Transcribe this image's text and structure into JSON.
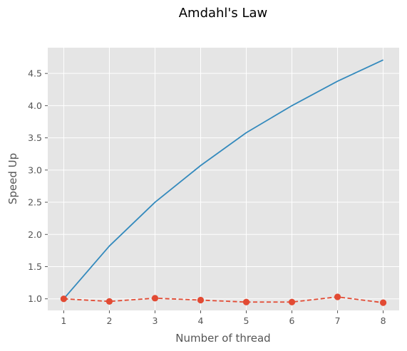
{
  "chart_data": {
    "type": "line",
    "title": "Amdahl's Law",
    "xlabel": "Number of thread",
    "ylabel": "Speed Up",
    "x": [
      1,
      2,
      3,
      4,
      5,
      6,
      7,
      8
    ],
    "xlim": [
      0.65,
      8.35
    ],
    "ylim": [
      0.82,
      4.9
    ],
    "yticks": [
      "1.0",
      "1.5",
      "2.0",
      "2.5",
      "3.0",
      "3.5",
      "4.0",
      "4.5"
    ],
    "xticks": [
      "1",
      "2",
      "3",
      "4",
      "5",
      "6",
      "7",
      "8"
    ],
    "grid": true,
    "series": [
      {
        "values": [
          1.0,
          1.82,
          2.5,
          3.07,
          3.58,
          4.0,
          4.38,
          4.71
        ],
        "style": "solid",
        "markers": false,
        "color": "#348abd"
      },
      {
        "values": [
          1.0,
          0.96,
          1.01,
          0.98,
          0.95,
          0.95,
          1.03,
          0.94
        ],
        "style": "dashed",
        "markers": true,
        "color": "#e24a33"
      }
    ],
    "colors": {
      "plot_background": "#e5e5e5",
      "grid": "#ffffff",
      "text": "#555555"
    }
  }
}
